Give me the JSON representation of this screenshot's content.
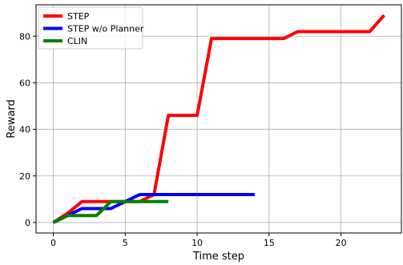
{
  "chart_data": {
    "type": "line",
    "title": "",
    "xlabel": "Time step",
    "ylabel": "Reward",
    "xlim": [
      -1.2,
      24.2
    ],
    "ylim": [
      -4.5,
      93.5
    ],
    "x_ticks": [
      0,
      5,
      10,
      15,
      20
    ],
    "y_ticks": [
      0,
      20,
      40,
      60,
      80
    ],
    "grid": true,
    "legend_position": "upper-left",
    "series": [
      {
        "name": "STEP",
        "color": "#ff0000",
        "x": [
          0,
          1,
          2,
          3,
          4,
          5,
          6,
          7,
          8,
          9,
          10,
          11,
          12,
          13,
          14,
          15,
          16,
          17,
          18,
          19,
          20,
          21,
          22,
          23
        ],
        "y": [
          0,
          4,
          9,
          9,
          9,
          9,
          9,
          12,
          46,
          46,
          46,
          79,
          79,
          79,
          79,
          79,
          79,
          82,
          82,
          82,
          82,
          82,
          82,
          89
        ]
      },
      {
        "name": "STEP w/o Planner",
        "color": "#0000ff",
        "x": [
          0,
          1,
          2,
          3,
          4,
          5,
          6,
          7,
          8,
          9,
          10,
          11,
          12,
          13,
          14
        ],
        "y": [
          0,
          3,
          6,
          6,
          6,
          9,
          12,
          12,
          12,
          12,
          12,
          12,
          12,
          12,
          12
        ]
      },
      {
        "name": "CLIN",
        "color": "#008000",
        "x": [
          0,
          1,
          2,
          3,
          4,
          5,
          6,
          7,
          8
        ],
        "y": [
          0,
          3,
          3,
          3,
          9,
          9,
          9,
          9,
          9
        ]
      }
    ]
  }
}
